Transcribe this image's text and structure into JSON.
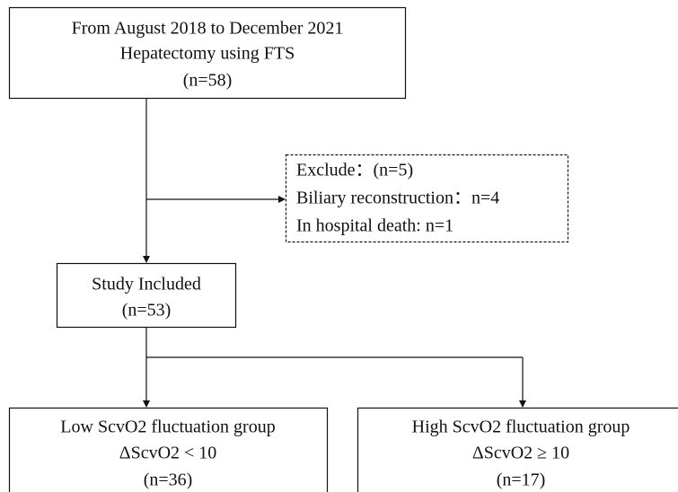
{
  "nodes": [
    {
      "lines": [
        "From August 2018 to December 2021",
        "Hepatectomy using FTS",
        "(n=58)"
      ]
    },
    {
      "lines": [
        "Exclude：(n=5)",
        "Biliary reconstruction：n=4",
        "In hospital death: n=1"
      ]
    },
    {
      "lines": [
        "Study Included",
        "(n=53)"
      ]
    },
    {
      "lines": [
        "Low ScvO2 fluctuation group",
        "ΔScvO2 < 10",
        "(n=36)"
      ]
    },
    {
      "lines": [
        "High ScvO2 fluctuation group",
        "ΔScvO2 ≥ 10",
        "(n=17)"
      ]
    }
  ]
}
